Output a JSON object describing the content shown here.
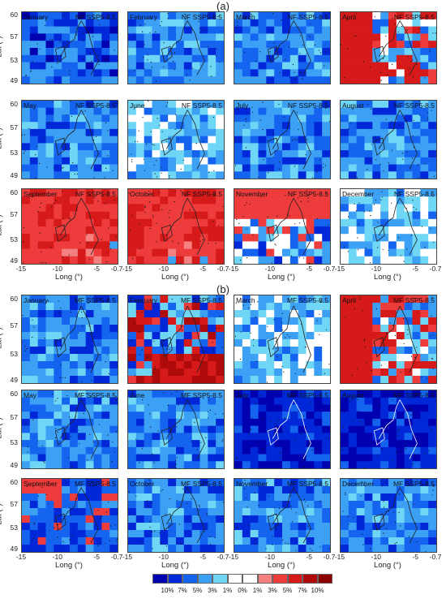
{
  "sections": [
    {
      "label": "(a)",
      "scenario": "NF SSP5-8.5"
    },
    {
      "label": "(b)",
      "scenario": "MF SSP5-8.5"
    }
  ],
  "months": [
    "January",
    "February",
    "March",
    "April",
    "May",
    "June",
    "July",
    "August",
    "September",
    "October",
    "November",
    "December"
  ],
  "axes": {
    "ylabel": "Lat (°)",
    "xlabel": "Long (°)",
    "yticks": [
      "60",
      "57",
      "53",
      "49"
    ],
    "xticks": [
      "-15",
      "-10",
      "-5",
      "-0.7"
    ]
  },
  "colorbar": {
    "colors": [
      "#0000b0",
      "#0028d8",
      "#1464f0",
      "#3ca0f5",
      "#6fd6f5",
      "#ffffff",
      "#ffffff",
      "#f48080",
      "#ee3b3b",
      "#d61a1a",
      "#b00b0b",
      "#8c0000"
    ],
    "labels": [
      "10%",
      "7%",
      "5%",
      "3%",
      "1%",
      "0%",
      "1%",
      "3%",
      "5%",
      "7%",
      "10%"
    ]
  },
  "panel_themes": {
    "a": [
      "mid-dark",
      "mid",
      "mid",
      "red-west",
      "mid",
      "white-mix",
      "mid",
      "mid",
      "red",
      "red",
      "red-north",
      "white-mix"
    ],
    "b": [
      "mid",
      "red-south",
      "white-mix",
      "red-west",
      "mid",
      "mid",
      "dark",
      "dark",
      "red-corner",
      "mid",
      "mid",
      "mid"
    ]
  }
}
